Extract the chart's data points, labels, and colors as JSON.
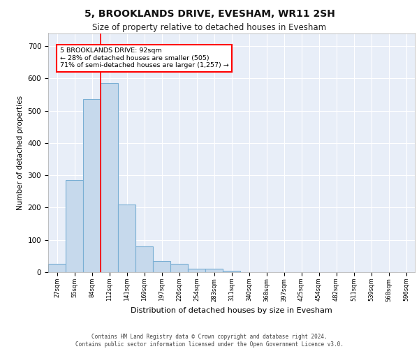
{
  "title": "5, BROOKLANDS DRIVE, EVESHAM, WR11 2SH",
  "subtitle": "Size of property relative to detached houses in Evesham",
  "xlabel": "Distribution of detached houses by size in Evesham",
  "ylabel": "Number of detached properties",
  "bin_labels": [
    "27sqm",
    "55sqm",
    "84sqm",
    "112sqm",
    "141sqm",
    "169sqm",
    "197sqm",
    "226sqm",
    "254sqm",
    "283sqm",
    "311sqm",
    "340sqm",
    "368sqm",
    "397sqm",
    "425sqm",
    "454sqm",
    "482sqm",
    "511sqm",
    "539sqm",
    "568sqm",
    "596sqm"
  ],
  "bar_heights": [
    25,
    285,
    535,
    585,
    210,
    80,
    35,
    25,
    10,
    10,
    5,
    0,
    0,
    0,
    0,
    0,
    0,
    0,
    0,
    0
  ],
  "bar_color": "#c6d9ec",
  "bar_edge_color": "#7aafd4",
  "red_line_label1": "5 BROOKLANDS DRIVE: 92sqm",
  "red_line_label2": "← 28% of detached houses are smaller (505)",
  "red_line_label3": "71% of semi-detached houses are larger (1,257) →",
  "ylim": [
    0,
    740
  ],
  "yticks": [
    0,
    100,
    200,
    300,
    400,
    500,
    600,
    700
  ],
  "footer1": "Contains HM Land Registry data © Crown copyright and database right 2024.",
  "footer2": "Contains public sector information licensed under the Open Government Licence v3.0.",
  "background_color": "#e8eef8",
  "grid_color": "#ffffff"
}
